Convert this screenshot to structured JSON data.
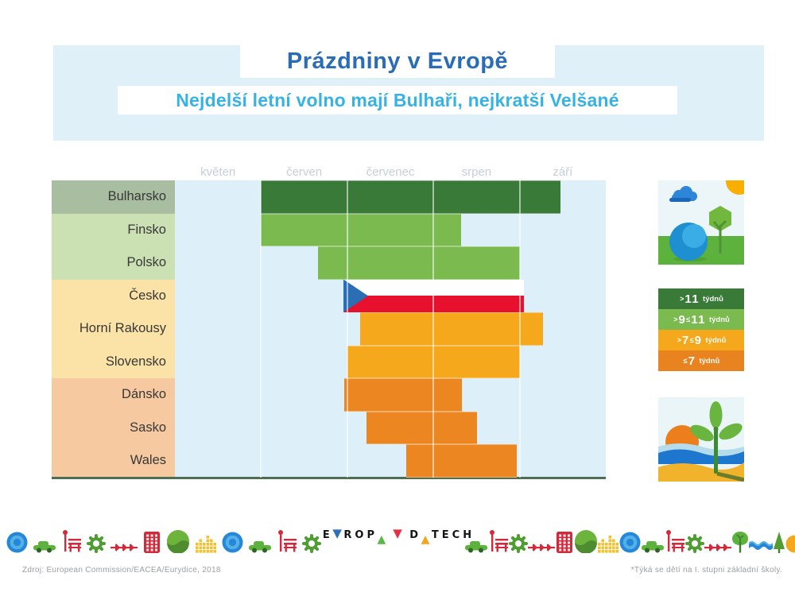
{
  "header": {
    "title": "Prázdniny v Evropě",
    "subtitle": "Nejdelší letní volno mají Bulhaři, nejkratší Velšané"
  },
  "chart_data": {
    "type": "gantt-bar",
    "description": "Summer school holiday span per country/region, May–September",
    "months": [
      "květen",
      "červen",
      "červenec",
      "srpen",
      "září"
    ],
    "x_range_months": [
      0,
      5
    ],
    "rows": [
      {
        "country": "Bulharsko",
        "start": 1.0,
        "end": 4.47,
        "weeks_category": ">11 týdnů",
        "bar": "dark-green",
        "row_bg": "sage"
      },
      {
        "country": "Finsko",
        "start": 1.0,
        "end": 3.32,
        "weeks_category": ">9≤11 týdnů",
        "bar": "light-green",
        "row_bg": "light-green"
      },
      {
        "country": "Polsko",
        "start": 1.66,
        "end": 4.0,
        "weeks_category": ">9≤11 týdnů",
        "bar": "light-green",
        "row_bg": "light-green"
      },
      {
        "country": "Česko",
        "start": 1.955,
        "end": 4.05,
        "weeks_category": ">7≤9 týdnů",
        "bar": "czech-flag",
        "row_bg": "yellow"
      },
      {
        "country": "Horní Rakousy",
        "start": 2.15,
        "end": 4.27,
        "weeks_category": ">7≤9 týdnů",
        "bar": "amber",
        "row_bg": "yellow"
      },
      {
        "country": "Slovensko",
        "start": 2.0,
        "end": 4.0,
        "weeks_category": ">7≤9 týdnů",
        "bar": "amber",
        "row_bg": "yellow"
      },
      {
        "country": "Dánsko",
        "start": 1.965,
        "end": 3.33,
        "weeks_category": "≤7 týdnů",
        "bar": "orange",
        "row_bg": "peach"
      },
      {
        "country": "Sasko",
        "start": 2.22,
        "end": 3.51,
        "weeks_category": "≤7 týdnů",
        "bar": "orange",
        "row_bg": "peach"
      },
      {
        "country": "Wales",
        "start": 2.68,
        "end": 3.97,
        "weeks_category": "≤7 týdnů",
        "bar": "orange",
        "row_bg": "peach"
      }
    ]
  },
  "legend": {
    "unit": "týdnů",
    "items": [
      {
        "label": ">11",
        "color": "#3a7a38"
      },
      {
        "label": ">9≤11",
        "color": "#7aba4e"
      },
      {
        "label": ">7≤9",
        "color": "#f6a81c"
      },
      {
        "label": "≤7",
        "color": "#e9831f"
      }
    ]
  },
  "colors": {
    "header_band": "#dff0f9",
    "title_text": "#2a6db6",
    "subtitle_text": "#36b2e4",
    "plot_bg": "#ddeff8",
    "month_label": "#c8ced8",
    "country_label": "#383838",
    "axis_line": "#4c6e52",
    "row_bg": {
      "sage": "#a9bea1",
      "light-green": "#cbe0b3",
      "yellow": "#fbe2a6",
      "peach": "#f6c9a0"
    },
    "bars": {
      "dark-green": "#3a7a38",
      "light-green": "#7aba4e",
      "amber": "#f6a81c",
      "orange": "#ec8620"
    },
    "flag": {
      "white": "#ffffff",
      "red": "#e8112d",
      "blue": "#2a6fb6"
    }
  },
  "illustrations": [
    {
      "name": "summer-park-illustration"
    },
    {
      "name": "beach-illustration"
    }
  ],
  "logo": {
    "text": "EVROPA V DATECH",
    "parts": [
      {
        "t": "E",
        "k": "letter"
      },
      {
        "t": "▼",
        "k": "tri-down",
        "color": "#2f6fb8"
      },
      {
        "t": "R",
        "k": "letter"
      },
      {
        "t": "O",
        "k": "letter"
      },
      {
        "t": "P",
        "k": "letter"
      },
      {
        "t": "▲",
        "k": "tri-up",
        "color": "#58b947"
      },
      {
        "t": " ",
        "k": "space"
      },
      {
        "t": "▼",
        "k": "tri-down",
        "color": "#e13248"
      },
      {
        "t": " ",
        "k": "space"
      },
      {
        "t": "D",
        "k": "letter"
      },
      {
        "t": "▲",
        "k": "tri-up",
        "color": "#f2a51e"
      },
      {
        "t": "T",
        "k": "letter"
      },
      {
        "t": "E",
        "k": "letter"
      },
      {
        "t": "C",
        "k": "letter"
      },
      {
        "t": "H",
        "k": "letter"
      }
    ]
  },
  "decor_icons": {
    "left": [
      "globe",
      "car",
      "bench",
      "gear",
      "arrows",
      "building",
      "hill",
      "skyline",
      "globe",
      "car",
      "bench",
      "gear"
    ],
    "right": [
      "car",
      "bench",
      "gear",
      "arrows",
      "building",
      "hill",
      "skyline",
      "globe",
      "car",
      "bench",
      "gear",
      "arrows",
      "tree",
      "waves",
      "pine",
      "sun",
      "red-triangle"
    ]
  },
  "footer": {
    "source": "Zdroj: European Commission/EACEA/Eurydice, 2018",
    "note": "*Týká se dětí na I. stupni základní školy."
  }
}
